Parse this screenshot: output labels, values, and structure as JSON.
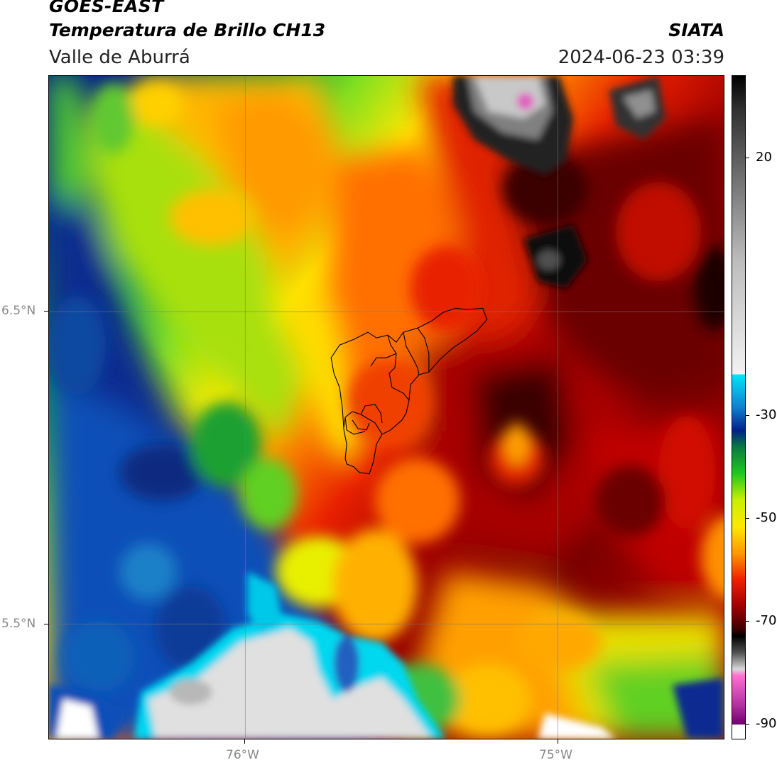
{
  "header": {
    "satellite": "GOES-EAST",
    "product": "Temperatura de Brillo CH13",
    "region": "Valle de Aburrá",
    "organization": "SIATA",
    "timestamp": "2024-06-23 03:39"
  },
  "map": {
    "lon_range": [
      -76.62,
      -74.52
    ],
    "lat_range": [
      5.13,
      7.25
    ],
    "lon_ticks": [
      {
        "value": -76.0,
        "label": "76°W"
      },
      {
        "value": -75.0,
        "label": "75°W"
      }
    ],
    "lat_ticks": [
      {
        "value": 6.5,
        "label": "6.5°N"
      },
      {
        "value": 5.5,
        "label": "5.5°N"
      }
    ],
    "grid": true,
    "overlay": "municipal boundaries of the Aburrá Valley",
    "colors": {
      "cold_cloud_magenta": "#e060c0",
      "cloud_white": "#e8e8e8",
      "black": "#000000",
      "dark_red": "#4a0000",
      "red": "#e01000",
      "orange": "#ff8a00",
      "yellow": "#ffe800",
      "green": "#20c020",
      "navy": "#00208a",
      "blue": "#1060c8",
      "cyan": "#00e0f0",
      "light_grey": "#d0d0d0"
    }
  },
  "colorbar": {
    "ticks": [
      {
        "value": 20,
        "label": "20"
      },
      {
        "value": -30,
        "label": "-30"
      },
      {
        "value": -50,
        "label": "-50"
      },
      {
        "value": -70,
        "label": "-70"
      },
      {
        "value": -90,
        "label": "-90"
      }
    ],
    "range": [
      -93,
      36
    ]
  }
}
